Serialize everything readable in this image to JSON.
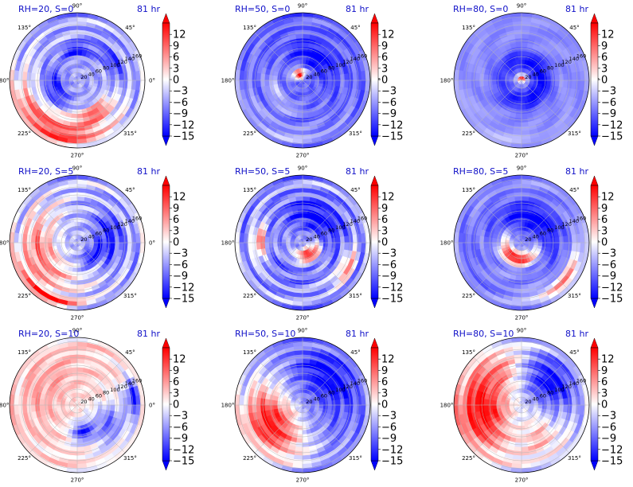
{
  "colors": {
    "title": "#1010c8",
    "cmap": [
      "#0000ff",
      "#ffffff",
      "#ff0000"
    ]
  },
  "chart_data": [
    {
      "type": "heatmap",
      "projection": "polar",
      "title": "RH=20, S=0",
      "time_label": "81 hr",
      "angle_labels": [
        "90°",
        "45°",
        "0°",
        "315°",
        "270°",
        "225°",
        "180°",
        "135°"
      ],
      "radial_ticks": [
        "20",
        "40",
        "60",
        "80",
        "100",
        "120",
        "140",
        "160"
      ],
      "colorbar": {
        "ticks": [
          "12",
          "9",
          "6",
          "3",
          "0",
          "−3",
          "−6",
          "−9",
          "−12",
          "−15"
        ],
        "vmin": -15,
        "vmax": 15,
        "extend": "both"
      },
      "pattern": {
        "background": -0.35,
        "ring": 0.3,
        "blobs": [
          {
            "angle": 245,
            "r": 0.82,
            "width": 0.22,
            "arc": 110,
            "v": 0.75
          },
          {
            "angle": 300,
            "r": 0.55,
            "width": 0.12,
            "arc": 60,
            "v": 0.55
          },
          {
            "angle": 90,
            "r": 0.45,
            "width": 0.1,
            "arc": 50,
            "v": -0.95
          },
          {
            "angle": 200,
            "r": 0.35,
            "width": 0.15,
            "arc": 80,
            "v": -0.9
          },
          {
            "angle": 30,
            "r": 0.6,
            "width": 0.1,
            "arc": 60,
            "v": -0.8
          }
        ]
      }
    },
    {
      "type": "heatmap",
      "projection": "polar",
      "title": "RH=50, S=0",
      "time_label": "81 hr",
      "angle_labels": [
        "90°",
        "45°",
        "0°",
        "315°",
        "270°",
        "225°",
        "180°",
        "135°"
      ],
      "radial_ticks": [
        "20",
        "40",
        "60",
        "80",
        "100",
        "120",
        "140",
        "160"
      ],
      "colorbar": {
        "ticks": [
          "12",
          "9",
          "6",
          "3",
          "0",
          "−3",
          "−6",
          "−9",
          "−12",
          "−15"
        ],
        "vmin": -15,
        "vmax": 15,
        "extend": "both"
      },
      "pattern": {
        "background": -0.6,
        "ring": 0.2,
        "blobs": [
          {
            "angle": 120,
            "r": 0.1,
            "width": 0.1,
            "arc": 80,
            "v": 0.9
          },
          {
            "angle": 60,
            "r": 0.4,
            "width": 0.2,
            "arc": 90,
            "v": -1.0
          },
          {
            "angle": 250,
            "r": 0.85,
            "width": 0.18,
            "arc": 120,
            "v": -0.35
          },
          {
            "angle": 210,
            "r": 0.45,
            "width": 0.1,
            "arc": 90,
            "v": -0.2
          }
        ]
      }
    },
    {
      "type": "heatmap",
      "projection": "polar",
      "title": "RH=80, S=0",
      "time_label": "81 hr",
      "angle_labels": [
        "90°",
        "45°",
        "0°",
        "315°",
        "270°",
        "225°",
        "180°",
        "135°"
      ],
      "radial_ticks": [
        "20",
        "40",
        "60",
        "80",
        "100",
        "120",
        "140",
        "160"
      ],
      "colorbar": {
        "ticks": [
          "12",
          "9",
          "6",
          "3",
          "0",
          "−3",
          "−6",
          "−9",
          "−12",
          "−15"
        ],
        "vmin": -15,
        "vmax": 15,
        "extend": "both"
      },
      "pattern": {
        "background": -0.45,
        "ring": 0.05,
        "blobs": [
          {
            "angle": 90,
            "r": 0.02,
            "width": 0.06,
            "arc": 200,
            "v": 0.95
          },
          {
            "angle": 0,
            "r": 0.3,
            "width": 0.16,
            "arc": 360,
            "v": -1.0
          },
          {
            "angle": 250,
            "r": 0.9,
            "width": 0.12,
            "arc": 100,
            "v": -0.3
          }
        ]
      }
    },
    {
      "type": "heatmap",
      "projection": "polar",
      "title": "RH=20, S=5",
      "time_label": "81 hr",
      "angle_labels": [
        "90°",
        "45°",
        "0°",
        "315°",
        "270°",
        "225°",
        "180°",
        "135°"
      ],
      "radial_ticks": [
        "20",
        "40",
        "60",
        "80",
        "100",
        "120",
        "140",
        "160"
      ],
      "colorbar": {
        "ticks": [
          "12",
          "9",
          "6",
          "3",
          "0",
          "−3",
          "−6",
          "−9",
          "−12",
          "−15"
        ],
        "vmin": -15,
        "vmax": 15,
        "extend": "both"
      },
      "pattern": {
        "background": -0.3,
        "ring": 0.35,
        "blobs": [
          {
            "angle": 200,
            "r": 0.6,
            "width": 0.3,
            "arc": 120,
            "v": 0.5
          },
          {
            "angle": 10,
            "r": 0.5,
            "width": 0.2,
            "arc": 80,
            "v": -0.85
          },
          {
            "angle": 320,
            "r": 0.3,
            "width": 0.1,
            "arc": 70,
            "v": -0.9
          },
          {
            "angle": 240,
            "r": 0.92,
            "width": 0.08,
            "arc": 60,
            "v": 0.6
          }
        ]
      }
    },
    {
      "type": "heatmap",
      "projection": "polar",
      "title": "RH=50, S=5",
      "time_label": "81 hr",
      "angle_labels": [
        "90°",
        "45°",
        "0°",
        "315°",
        "270°",
        "225°",
        "180°",
        "135°"
      ],
      "radial_ticks": [
        "20",
        "40",
        "60",
        "80",
        "100",
        "120",
        "140",
        "160"
      ],
      "colorbar": {
        "ticks": [
          "12",
          "9",
          "6",
          "3",
          "0",
          "−3",
          "−6",
          "−9",
          "−12",
          "−15"
        ],
        "vmin": -15,
        "vmax": 15,
        "extend": "both"
      },
      "pattern": {
        "background": -0.4,
        "ring": 0.35,
        "blobs": [
          {
            "angle": 300,
            "r": 0.2,
            "width": 0.1,
            "arc": 90,
            "v": 0.95
          },
          {
            "angle": 60,
            "r": 0.45,
            "width": 0.25,
            "arc": 110,
            "v": -1.0
          },
          {
            "angle": 180,
            "r": 0.65,
            "width": 0.1,
            "arc": 40,
            "v": 0.55
          },
          {
            "angle": 330,
            "r": 0.75,
            "width": 0.1,
            "arc": 40,
            "v": 0.45
          },
          {
            "angle": 240,
            "r": 0.5,
            "width": 0.15,
            "arc": 90,
            "v": -0.6
          }
        ]
      }
    },
    {
      "type": "heatmap",
      "projection": "polar",
      "title": "RH=80, S=5",
      "time_label": "81 hr",
      "angle_labels": [
        "90°",
        "45°",
        "0°",
        "315°",
        "270°",
        "225°",
        "180°",
        "135°"
      ],
      "radial_ticks": [
        "20",
        "40",
        "60",
        "80",
        "100",
        "120",
        "140",
        "160"
      ],
      "colorbar": {
        "ticks": [
          "12",
          "9",
          "6",
          "3",
          "0",
          "−3",
          "−6",
          "−9",
          "−12",
          "−15"
        ],
        "vmin": -15,
        "vmax": 15,
        "extend": "both"
      },
      "pattern": {
        "background": -0.45,
        "ring": 0.15,
        "blobs": [
          {
            "angle": 250,
            "r": 0.25,
            "width": 0.1,
            "arc": 140,
            "v": 1.0
          },
          {
            "angle": 60,
            "r": 0.4,
            "width": 0.25,
            "arc": 160,
            "v": -1.0
          },
          {
            "angle": 320,
            "r": 0.85,
            "width": 0.1,
            "arc": 60,
            "v": 0.45
          },
          {
            "angle": 200,
            "r": 0.8,
            "width": 0.12,
            "arc": 70,
            "v": -0.6
          }
        ]
      }
    },
    {
      "type": "heatmap",
      "projection": "polar",
      "title": "RH=20, S=10",
      "time_label": "81 hr",
      "angle_labels": [
        "90°",
        "45°",
        "0°",
        "315°",
        "270°",
        "225°",
        "180°",
        "135°"
      ],
      "radial_ticks": [
        "20",
        "40",
        "60",
        "80",
        "100",
        "120",
        "140",
        "160"
      ],
      "colorbar": {
        "ticks": [
          "12",
          "9",
          "6",
          "3",
          "0",
          "−3",
          "−6",
          "−9",
          "−12",
          "−15"
        ],
        "vmin": -15,
        "vmax": 15,
        "extend": "both"
      },
      "pattern": {
        "background": 0.12,
        "ring": 0.2,
        "blobs": [
          {
            "angle": 150,
            "r": 0.55,
            "width": 0.35,
            "arc": 120,
            "v": 0.35
          },
          {
            "angle": 330,
            "r": 0.55,
            "width": 0.3,
            "arc": 60,
            "v": -0.55
          },
          {
            "angle": 10,
            "r": 0.85,
            "width": 0.1,
            "arc": 30,
            "v": -0.9
          },
          {
            "angle": 280,
            "r": 0.4,
            "width": 0.15,
            "arc": 40,
            "v": -0.8
          }
        ]
      }
    },
    {
      "type": "heatmap",
      "projection": "polar",
      "title": "RH=50, S=10",
      "time_label": "81 hr",
      "angle_labels": [
        "90°",
        "45°",
        "0°",
        "315°",
        "270°",
        "225°",
        "180°",
        "135°"
      ],
      "radial_ticks": [
        "20",
        "40",
        "60",
        "80",
        "100",
        "120",
        "140",
        "160"
      ],
      "colorbar": {
        "ticks": [
          "12",
          "9",
          "6",
          "3",
          "0",
          "−3",
          "−6",
          "−9",
          "−12",
          "−15"
        ],
        "vmin": -15,
        "vmax": 15,
        "extend": "both"
      },
      "pattern": {
        "background": -0.4,
        "ring": 0.25,
        "blobs": [
          {
            "angle": 210,
            "r": 0.55,
            "width": 0.4,
            "arc": 100,
            "v": 0.9
          },
          {
            "angle": 45,
            "r": 0.55,
            "width": 0.35,
            "arc": 100,
            "v": -1.0
          },
          {
            "angle": 310,
            "r": 0.6,
            "width": 0.3,
            "arc": 50,
            "v": -0.5
          }
        ]
      }
    },
    {
      "type": "heatmap",
      "projection": "polar",
      "title": "RH=80, S=10",
      "time_label": "81 hr",
      "angle_labels": [
        "90°",
        "45°",
        "0°",
        "315°",
        "270°",
        "225°",
        "180°",
        "135°"
      ],
      "radial_ticks": [
        "20",
        "40",
        "60",
        "80",
        "100",
        "120",
        "140",
        "160"
      ],
      "colorbar": {
        "ticks": [
          "12",
          "9",
          "6",
          "3",
          "0",
          "−3",
          "−6",
          "−9",
          "−12",
          "−15"
        ],
        "vmin": -15,
        "vmax": 15,
        "extend": "both"
      },
      "pattern": {
        "background": -0.15,
        "ring": 0.25,
        "blobs": [
          {
            "angle": 190,
            "r": 0.6,
            "width": 0.4,
            "arc": 90,
            "v": 1.0
          },
          {
            "angle": 40,
            "r": 0.55,
            "width": 0.35,
            "arc": 80,
            "v": -1.0
          },
          {
            "angle": 300,
            "r": 0.55,
            "width": 0.3,
            "arc": 50,
            "v": 0.25
          },
          {
            "angle": 120,
            "r": 0.6,
            "width": 0.3,
            "arc": 60,
            "v": 0.3
          }
        ]
      }
    }
  ]
}
